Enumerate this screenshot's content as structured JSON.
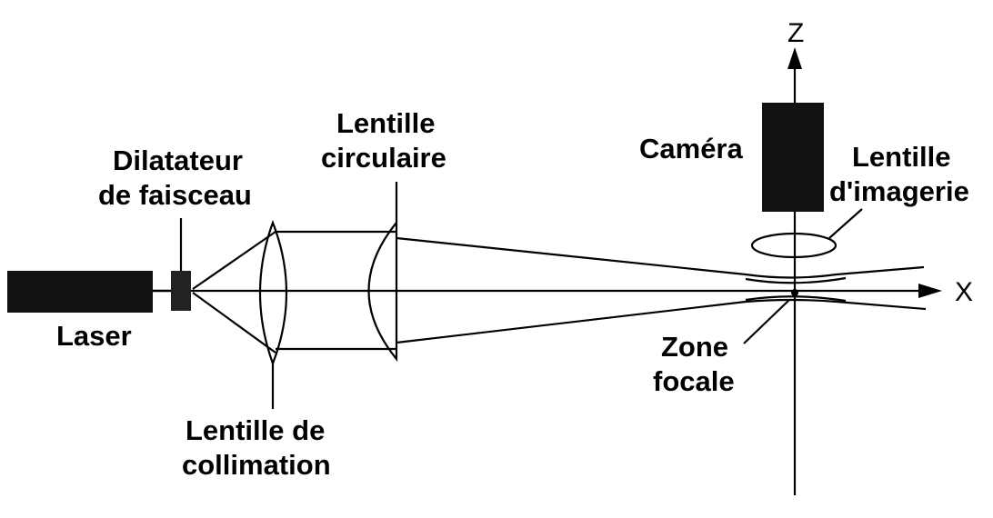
{
  "labels": {
    "laser": "Laser",
    "beam_expander": [
      "Dilatateur",
      "de faisceau"
    ],
    "circular_lens": [
      "Lentille",
      "circulaire"
    ],
    "collimation_lens": [
      "Lentille de",
      "collimation"
    ],
    "camera": "Caméra",
    "imaging_lens": [
      "Lentille",
      "d'imagerie"
    ],
    "focal_zone": [
      "Zone",
      "focale"
    ]
  },
  "axes": {
    "x": "X",
    "z": "Z"
  },
  "colors": {
    "ink": "#000000",
    "background": "#ffffff"
  }
}
